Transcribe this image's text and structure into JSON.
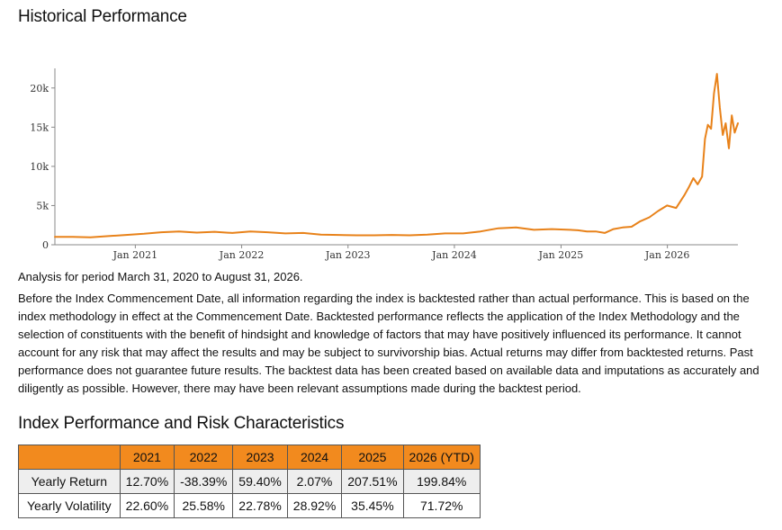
{
  "header": {
    "title": "Historical Performance"
  },
  "chart_data": {
    "type": "line",
    "title": "",
    "xlabel": "",
    "ylabel": "",
    "ylim": [
      0,
      22500
    ],
    "xlim": [
      "2020-03-31",
      "2026-08-31"
    ],
    "grid": false,
    "legend": "none",
    "line_color": "#e8821a",
    "y_ticks": [
      0,
      5000,
      10000,
      15000,
      20000
    ],
    "y_tick_labels": [
      "0",
      "5k",
      "10k",
      "15k",
      "20k"
    ],
    "x_ticks": [
      "2021-01-01",
      "2022-01-01",
      "2023-01-01",
      "2024-01-01",
      "2025-01-01",
      "2026-01-01"
    ],
    "x_tick_labels": [
      "Jan 2021",
      "Jan 2022",
      "Jan 2023",
      "Jan 2024",
      "Jan 2025",
      "Jan 2026"
    ],
    "series": [
      {
        "x": [
          "2020-03-31",
          "2020-05-31",
          "2020-07-31",
          "2020-09-30",
          "2020-11-30",
          "2021-01-31",
          "2021-03-31",
          "2021-05-31",
          "2021-07-31",
          "2021-09-30",
          "2021-11-30",
          "2022-01-31",
          "2022-03-31",
          "2022-05-31",
          "2022-07-31",
          "2022-09-30",
          "2022-11-30",
          "2023-01-31",
          "2023-03-31",
          "2023-05-31",
          "2023-07-31",
          "2023-09-30",
          "2023-11-30",
          "2024-01-31",
          "2024-03-31",
          "2024-05-31",
          "2024-07-31",
          "2024-09-30",
          "2024-11-30",
          "2025-01-31",
          "2025-02-28",
          "2025-03-31",
          "2025-04-30",
          "2025-05-31",
          "2025-06-30",
          "2025-07-31",
          "2025-08-31",
          "2025-09-30",
          "2025-10-31",
          "2025-11-30",
          "2025-12-31",
          "2026-01-31",
          "2026-02-28",
          "2026-03-15",
          "2026-03-31",
          "2026-04-15",
          "2026-04-30",
          "2026-05-10",
          "2026-05-20",
          "2026-05-31",
          "2026-06-10",
          "2026-06-20",
          "2026-06-30",
          "2026-07-10",
          "2026-07-20",
          "2026-07-31",
          "2026-08-10",
          "2026-08-20",
          "2026-08-31"
        ],
        "values": [
          1000,
          1000,
          950,
          1100,
          1250,
          1400,
          1600,
          1700,
          1550,
          1650,
          1500,
          1700,
          1600,
          1450,
          1500,
          1300,
          1250,
          1200,
          1200,
          1250,
          1200,
          1300,
          1450,
          1450,
          1700,
          2100,
          2200,
          1900,
          2000,
          1900,
          1850,
          1700,
          1700,
          1500,
          2000,
          2200,
          2300,
          3000,
          3500,
          4300,
          5000,
          4700,
          6300,
          7300,
          8500,
          7700,
          8700,
          13500,
          15300,
          14800,
          19300,
          21800,
          17500,
          14000,
          15500,
          12300,
          16500,
          14300,
          15500
        ]
      }
    ]
  },
  "analysis_period": "Analysis for period March 31, 2020 to August 31, 2026.",
  "disclaimer": "Before the Index Commencement Date, all information regarding the index is backtested rather than actual performance. This is based on the index methodology in effect at the Commencement Date. Backtested performance reflects the application of the Index Methodology and the selection of constituents with the benefit of hindsight and knowledge of factors that may have positively influenced its performance. It cannot account for any risk that may affect the results and may be subject to survivorship bias. Actual returns may differ from backtested returns. Past performance does not guarantee future results. The backtest data has been created based on available data and imputations as accurately and diligently as possible. However, there may have been relevant assumptions made during the backtest period.",
  "table": {
    "title": "Index Performance and Risk Characteristics",
    "header_color": "#f28a1e",
    "columns": [
      "2021",
      "2022",
      "2023",
      "2024",
      "2025",
      "2026 (YTD)"
    ],
    "rows": [
      {
        "label": "Yearly Return",
        "values": [
          "12.70%",
          "-38.39%",
          "59.40%",
          "2.07%",
          "207.51%",
          "199.84%"
        ]
      },
      {
        "label": "Yearly Volatility",
        "values": [
          "22.60%",
          "25.58%",
          "22.78%",
          "28.92%",
          "35.45%",
          "71.72%"
        ]
      }
    ]
  }
}
